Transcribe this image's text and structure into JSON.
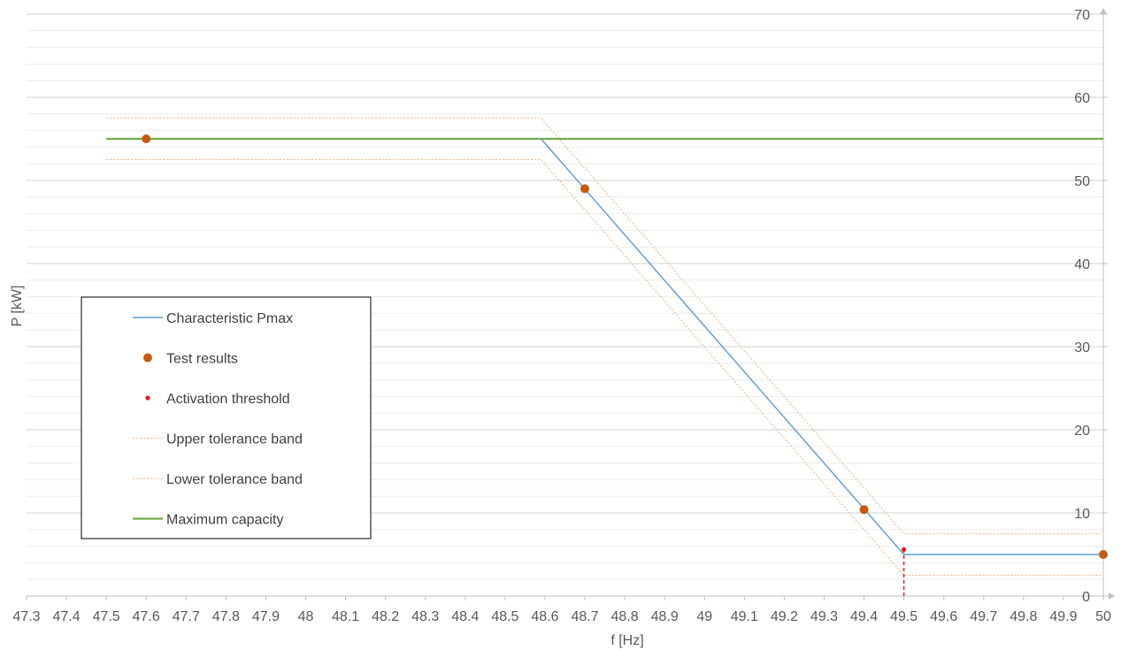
{
  "chart_data": {
    "type": "line",
    "xlabel": "f [Hz]",
    "ylabel": "P [kW]",
    "xlim": [
      47.3,
      50
    ],
    "ylim": [
      0,
      70
    ],
    "x_ticks": [
      "47.3",
      "47.4",
      "47.5",
      "47.6",
      "47.7",
      "47.8",
      "47.9",
      "48",
      "48.1",
      "48.2",
      "48.3",
      "48.4",
      "48.5",
      "48.6",
      "48.7",
      "48.8",
      "48.9",
      "49",
      "49.1",
      "49.2",
      "49.3",
      "49.4",
      "49.5",
      "49.6",
      "49.7",
      "49.8",
      "49.9",
      "50"
    ],
    "y_ticks": [
      "0",
      "10",
      "20",
      "30",
      "40",
      "50",
      "60",
      "70"
    ],
    "y_axis_position": "right",
    "grid": {
      "major_y": 10,
      "minor_y": 2
    },
    "legend_position": "left-middle",
    "series": [
      {
        "name": "Characteristic Pmax",
        "kind": "line",
        "color": "#5B9BD5",
        "x": [
          48.59,
          49.5,
          50
        ],
        "y": [
          55,
          5,
          5
        ]
      },
      {
        "name": "Test results",
        "kind": "marker",
        "color": "#C55A11",
        "x": [
          47.6,
          48.7,
          49.4,
          50
        ],
        "y": [
          55,
          49,
          10.4,
          5
        ]
      },
      {
        "name": "Activation threshold",
        "kind": "marker",
        "color": "#E31A1C",
        "x": [
          49.5
        ],
        "y": [
          5.6
        ]
      },
      {
        "name": "Upper tolerance band",
        "kind": "dotted-line",
        "color": "#F4B183",
        "x": [
          47.5,
          48.59,
          49.5,
          50
        ],
        "y": [
          57.5,
          57.5,
          7.5,
          7.5
        ]
      },
      {
        "name": "Lower tolerance band",
        "kind": "dotted-line",
        "color": "#F4B183",
        "x": [
          47.5,
          48.59,
          49.5,
          50
        ],
        "y": [
          52.5,
          52.5,
          2.5,
          2.5
        ]
      },
      {
        "name": "Maximum capacity",
        "kind": "line",
        "color": "#70AD47",
        "x": [
          47.5,
          50
        ],
        "y": [
          55,
          55
        ]
      }
    ],
    "annotations": [
      {
        "kind": "vertical-dashed",
        "x": 49.5,
        "y_from": 0,
        "y_to": 5.6,
        "color": "#E31A1C"
      }
    ]
  }
}
